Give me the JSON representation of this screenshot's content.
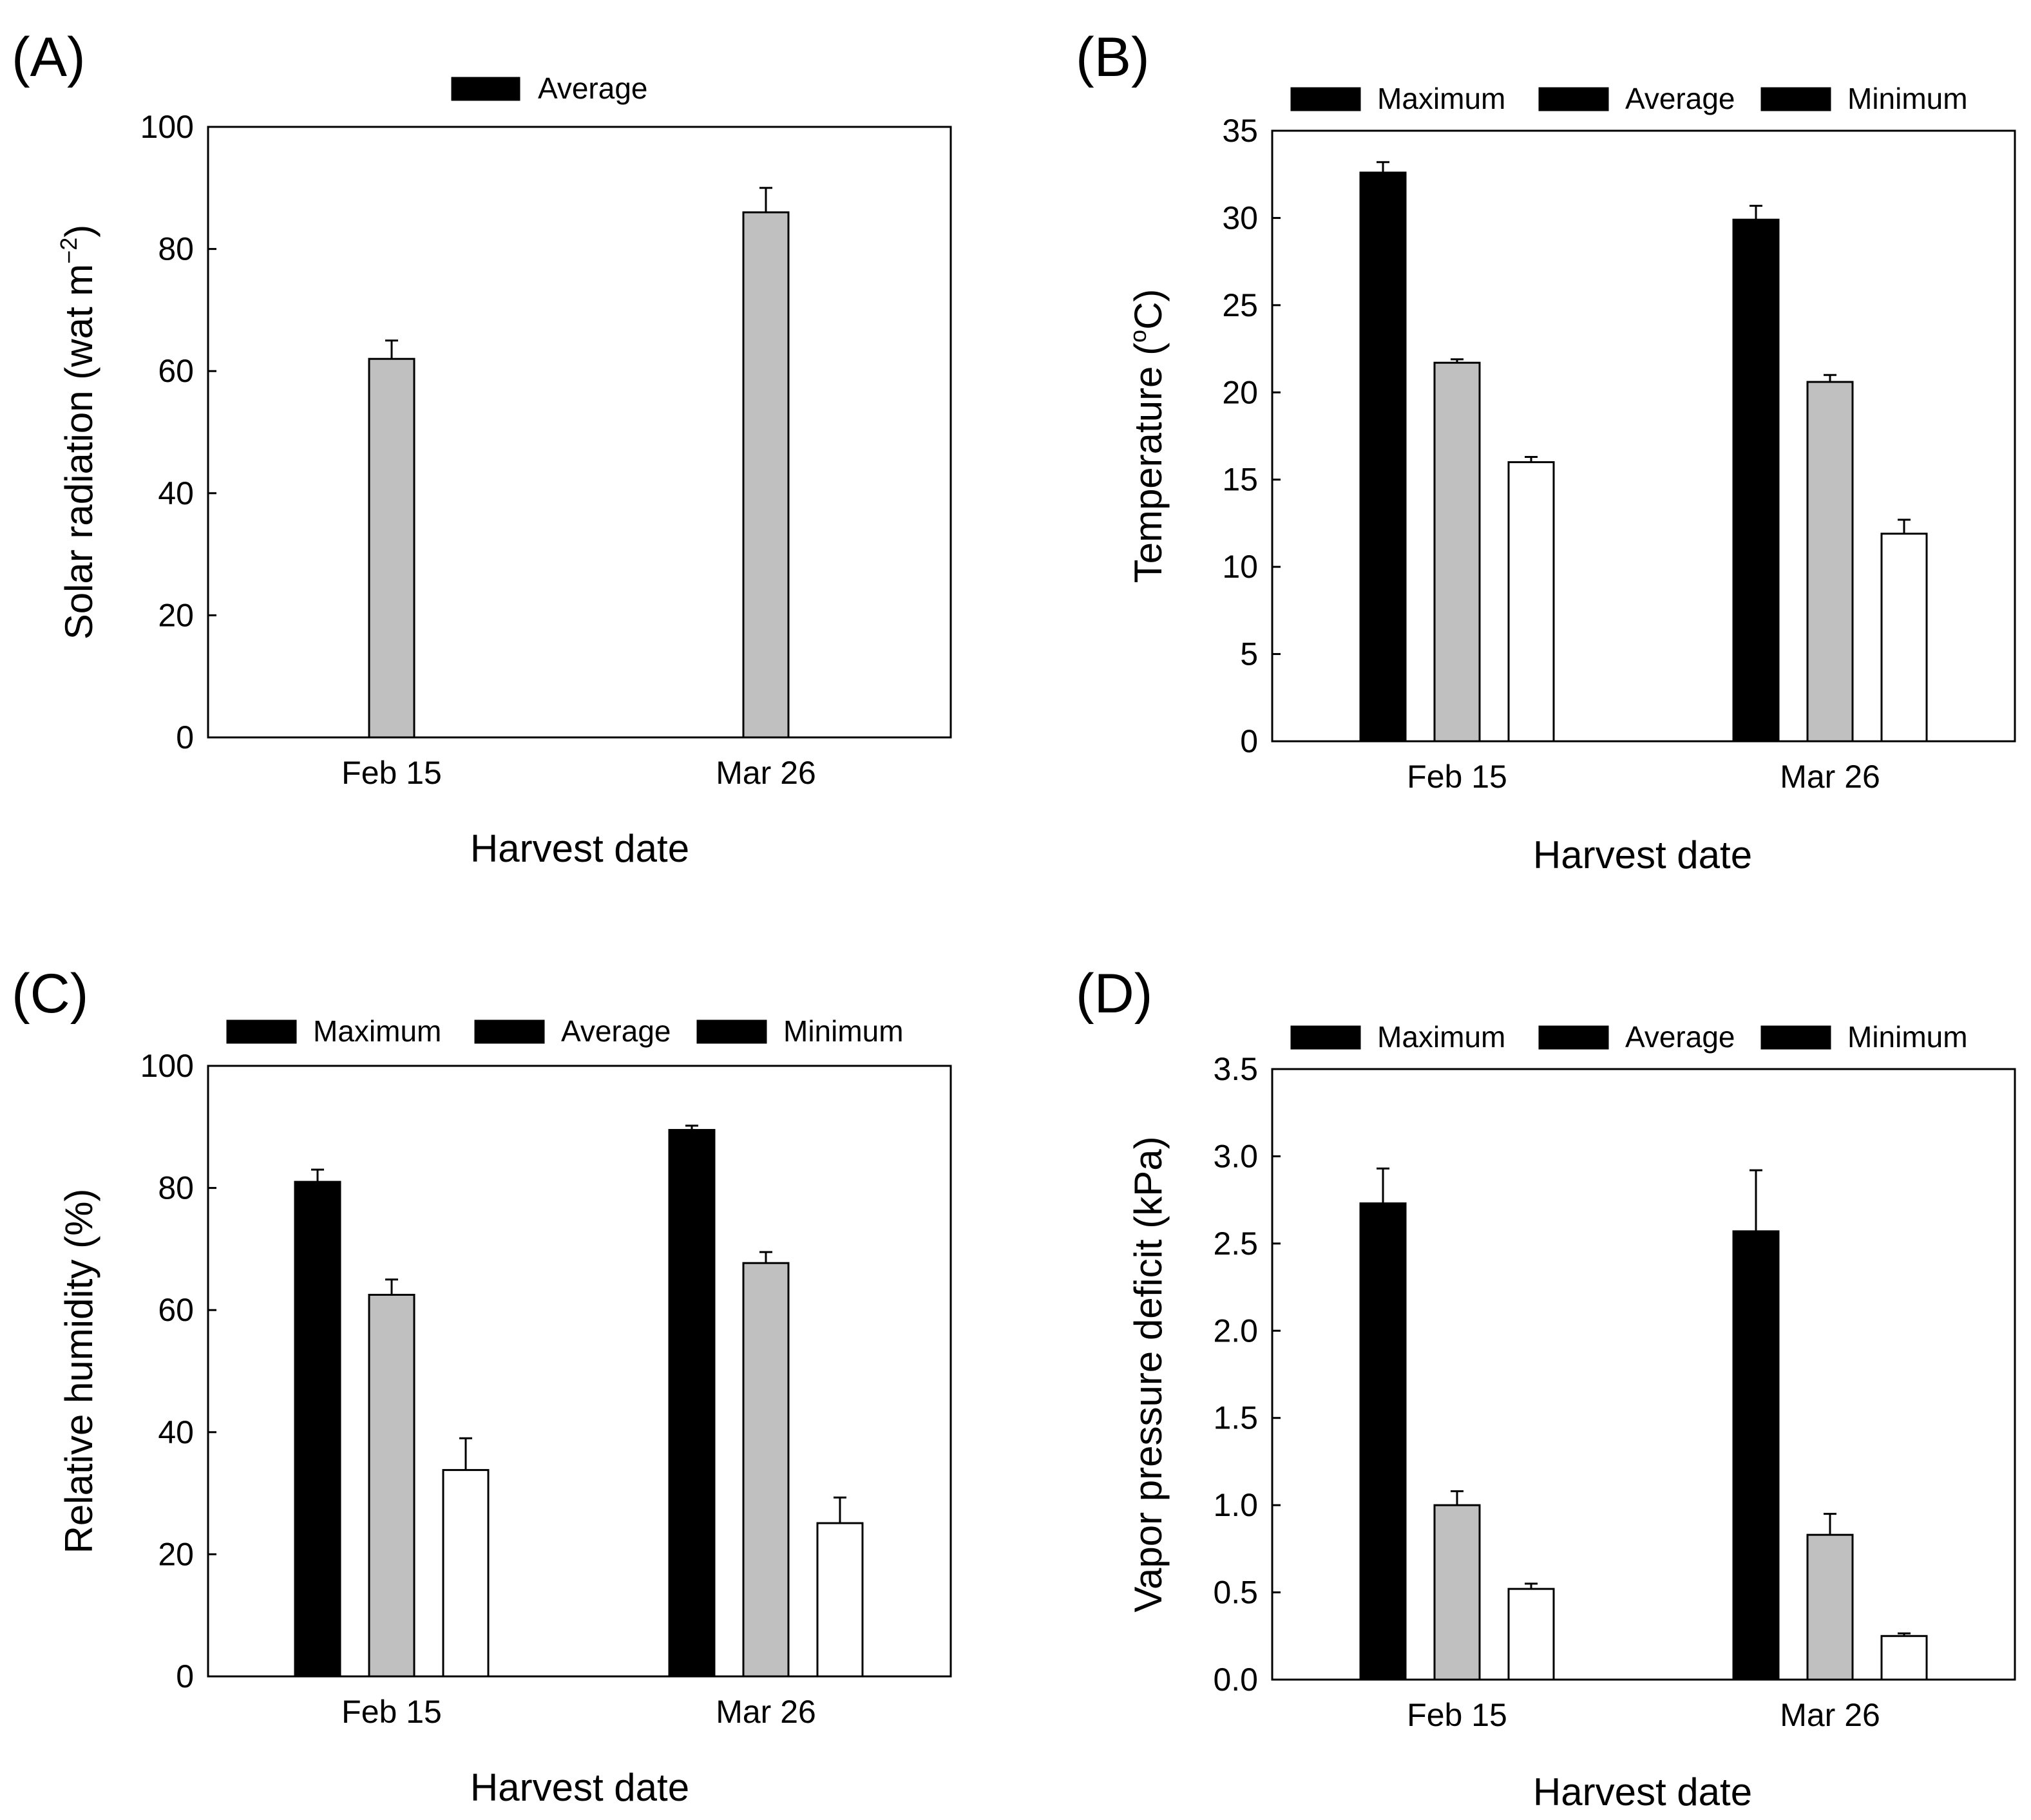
{
  "colors": {
    "Maximum": "#000000",
    "Average": "#c0c0c0",
    "Minimum": "#ffffff"
  },
  "chart_data": [
    {
      "type": "bar",
      "panel": "(A)",
      "title": "",
      "categories": [
        "Feb 15",
        "Mar 26"
      ],
      "series": [
        {
          "name": "Average",
          "values": [
            62,
            86
          ],
          "errors": [
            3,
            4
          ]
        }
      ],
      "legend": [
        "Average"
      ],
      "legend_position": "top-center",
      "xlabel": "Harvest date",
      "ylabel_main": "Solar radiation (wat m",
      "ylabel_sup": "−2",
      "ylabel_tail": ")",
      "ylim": [
        0,
        100
      ],
      "yticks": [
        0,
        20,
        40,
        60,
        80,
        100
      ],
      "ytick_labels": [
        "0",
        "20",
        "40",
        "60",
        "80",
        "100"
      ]
    },
    {
      "type": "bar",
      "panel": "(B)",
      "title": "",
      "categories": [
        "Feb 15",
        "Mar 26"
      ],
      "series": [
        {
          "name": "Maximum",
          "values": [
            32.6,
            29.9
          ],
          "errors": [
            0.6,
            0.8
          ]
        },
        {
          "name": "Average",
          "values": [
            21.7,
            20.6
          ],
          "errors": [
            0.2,
            0.4
          ]
        },
        {
          "name": "Minimum",
          "values": [
            16.0,
            11.9
          ],
          "errors": [
            0.3,
            0.8
          ]
        }
      ],
      "legend": [
        "Maximum",
        "Average",
        "Minimum"
      ],
      "legend_position": "top",
      "xlabel": "Harvest date",
      "ylabel_main": "Temperature (",
      "ylabel_sup": "o",
      "ylabel_tail": "C)",
      "ylim": [
        0,
        35
      ],
      "yticks": [
        0,
        5,
        10,
        15,
        20,
        25,
        30,
        35
      ],
      "ytick_labels": [
        "0",
        "5",
        "10",
        "15",
        "20",
        "25",
        "30",
        "35"
      ]
    },
    {
      "type": "bar",
      "panel": "(C)",
      "title": "",
      "categories": [
        "Feb 15",
        "Mar 26"
      ],
      "series": [
        {
          "name": "Maximum",
          "values": [
            81,
            89.5
          ],
          "errors": [
            2,
            0.7
          ]
        },
        {
          "name": "Average",
          "values": [
            62.5,
            67.7
          ],
          "errors": [
            2.5,
            1.8
          ]
        },
        {
          "name": "Minimum",
          "values": [
            33.8,
            25.1
          ],
          "errors": [
            5.2,
            4.2
          ]
        }
      ],
      "legend": [
        "Maximum",
        "Average",
        "Minimum"
      ],
      "legend_position": "top",
      "xlabel": "Harvest date",
      "ylabel_main": "Relative humidity (%)",
      "ylabel_sup": "",
      "ylabel_tail": "",
      "ylim": [
        0,
        100
      ],
      "yticks": [
        0,
        20,
        40,
        60,
        80,
        100
      ],
      "ytick_labels": [
        "0",
        "20",
        "40",
        "60",
        "80",
        "100"
      ]
    },
    {
      "type": "bar",
      "panel": "(D)",
      "title": "",
      "categories": [
        "Feb 15",
        "Mar 26"
      ],
      "series": [
        {
          "name": "Maximum",
          "values": [
            2.73,
            2.57
          ],
          "errors": [
            0.2,
            0.35
          ]
        },
        {
          "name": "Average",
          "values": [
            1.0,
            0.83
          ],
          "errors": [
            0.08,
            0.12
          ]
        },
        {
          "name": "Minimum",
          "values": [
            0.52,
            0.25
          ],
          "errors": [
            0.03,
            0.015
          ]
        }
      ],
      "legend": [
        "Maximum",
        "Average",
        "Minimum"
      ],
      "legend_position": "top",
      "xlabel": "Harvest date",
      "ylabel_main": "Vapor pressure deficit (kPa)",
      "ylabel_sup": "",
      "ylabel_tail": "",
      "ylim": [
        0,
        3.5
      ],
      "yticks": [
        0,
        0.5,
        1,
        1.5,
        2,
        2.5,
        3,
        3.5
      ],
      "ytick_labels": [
        "0.0",
        "0.5",
        "1.0",
        "1.5",
        "2.0",
        "2.5",
        "3.0",
        "3.5"
      ]
    }
  ]
}
